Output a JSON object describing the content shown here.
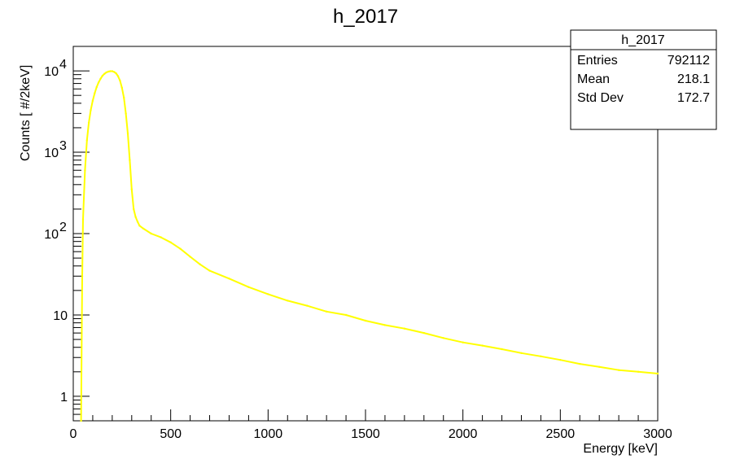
{
  "chart_data": {
    "type": "line",
    "title": "h_2017",
    "xlabel": "Energy [keV]",
    "ylabel": "Counts [ #/2keV]",
    "xlim": [
      0,
      3000
    ],
    "ylim": [
      0.5,
      20000
    ],
    "yscale": "log",
    "grid": false,
    "x_ticks": [
      0,
      500,
      1000,
      1500,
      2000,
      2500,
      3000
    ],
    "y_tick_labels": [
      {
        "value": 1,
        "label": "1"
      },
      {
        "value": 10,
        "label": "10"
      },
      {
        "value": 100,
        "label": "10",
        "exp": "2"
      },
      {
        "value": 1000,
        "label": "10",
        "exp": "3"
      },
      {
        "value": 10000,
        "label": "10",
        "exp": "4"
      }
    ],
    "series": [
      {
        "color": "#ffff00",
        "x": [
          40,
          46,
          50,
          60,
          70,
          80,
          90,
          100,
          110,
          120,
          130,
          140,
          150,
          160,
          170,
          180,
          190,
          200,
          210,
          220,
          230,
          240,
          250,
          260,
          270,
          280,
          290,
          300,
          310,
          320,
          330,
          340,
          360,
          400,
          450,
          500,
          550,
          600,
          650,
          700,
          800,
          900,
          1000,
          1100,
          1200,
          1300,
          1400,
          1500,
          1600,
          1700,
          1800,
          1900,
          2000,
          2100,
          2200,
          2300,
          2400,
          2500,
          2600,
          2700,
          2800,
          2900,
          3000
        ],
        "y": [
          0.5,
          30,
          150,
          600,
          1400,
          2300,
          3300,
          4300,
          5300,
          6300,
          7200,
          8000,
          8700,
          9200,
          9600,
          9800,
          9900,
          9900,
          9700,
          9300,
          8600,
          7600,
          6200,
          4700,
          3000,
          1700,
          800,
          350,
          200,
          160,
          140,
          125,
          115,
          100,
          90,
          78,
          65,
          52,
          42,
          35,
          28,
          22,
          18,
          15,
          13,
          11,
          10,
          8.5,
          7.5,
          6.8,
          6,
          5.2,
          4.6,
          4.2,
          3.8,
          3.4,
          3.1,
          2.8,
          2.5,
          2.3,
          2.1,
          2,
          1.9
        ]
      }
    ],
    "stats_box": {
      "name": "h_2017",
      "rows": [
        {
          "label": "Entries",
          "value": "792112"
        },
        {
          "label": "Mean",
          "value": "218.1"
        },
        {
          "label": "Std Dev",
          "value": "172.7"
        }
      ]
    }
  }
}
